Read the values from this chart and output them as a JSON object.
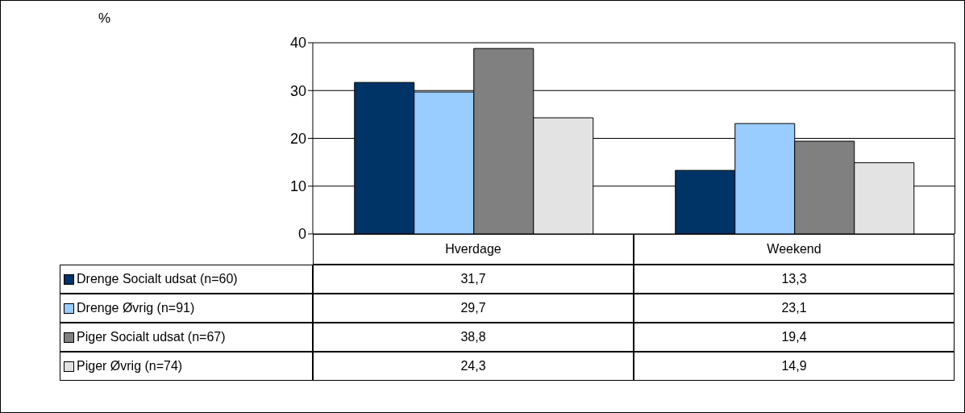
{
  "chart_data": {
    "type": "bar",
    "annotations": [
      "%"
    ],
    "categories": [
      "Hverdage",
      "Weekend"
    ],
    "ylim": [
      0,
      40
    ],
    "yticks": [
      0,
      10,
      20,
      30,
      40
    ],
    "grid": "y",
    "legend": "bottom",
    "series": [
      {
        "name": "Drenge Socialt udsat (n=60)",
        "color": "#003366",
        "values": [
          31.7,
          13.3
        ],
        "value_labels": [
          "31,7",
          "13,3"
        ]
      },
      {
        "name": "Drenge Øvrig (n=91)",
        "color": "#99ccff",
        "values": [
          29.7,
          23.1
        ],
        "value_labels": [
          "29,7",
          "23,1"
        ]
      },
      {
        "name": "Piger Socialt udsat (n=67)",
        "color": "#808080",
        "values": [
          38.8,
          19.4
        ],
        "value_labels": [
          "38,8",
          "19,4"
        ]
      },
      {
        "name": "Piger Øvrig (n=74)",
        "color": "#e3e3e3",
        "values": [
          24.3,
          14.9
        ],
        "value_labels": [
          "24,3",
          "14,9"
        ]
      }
    ]
  }
}
